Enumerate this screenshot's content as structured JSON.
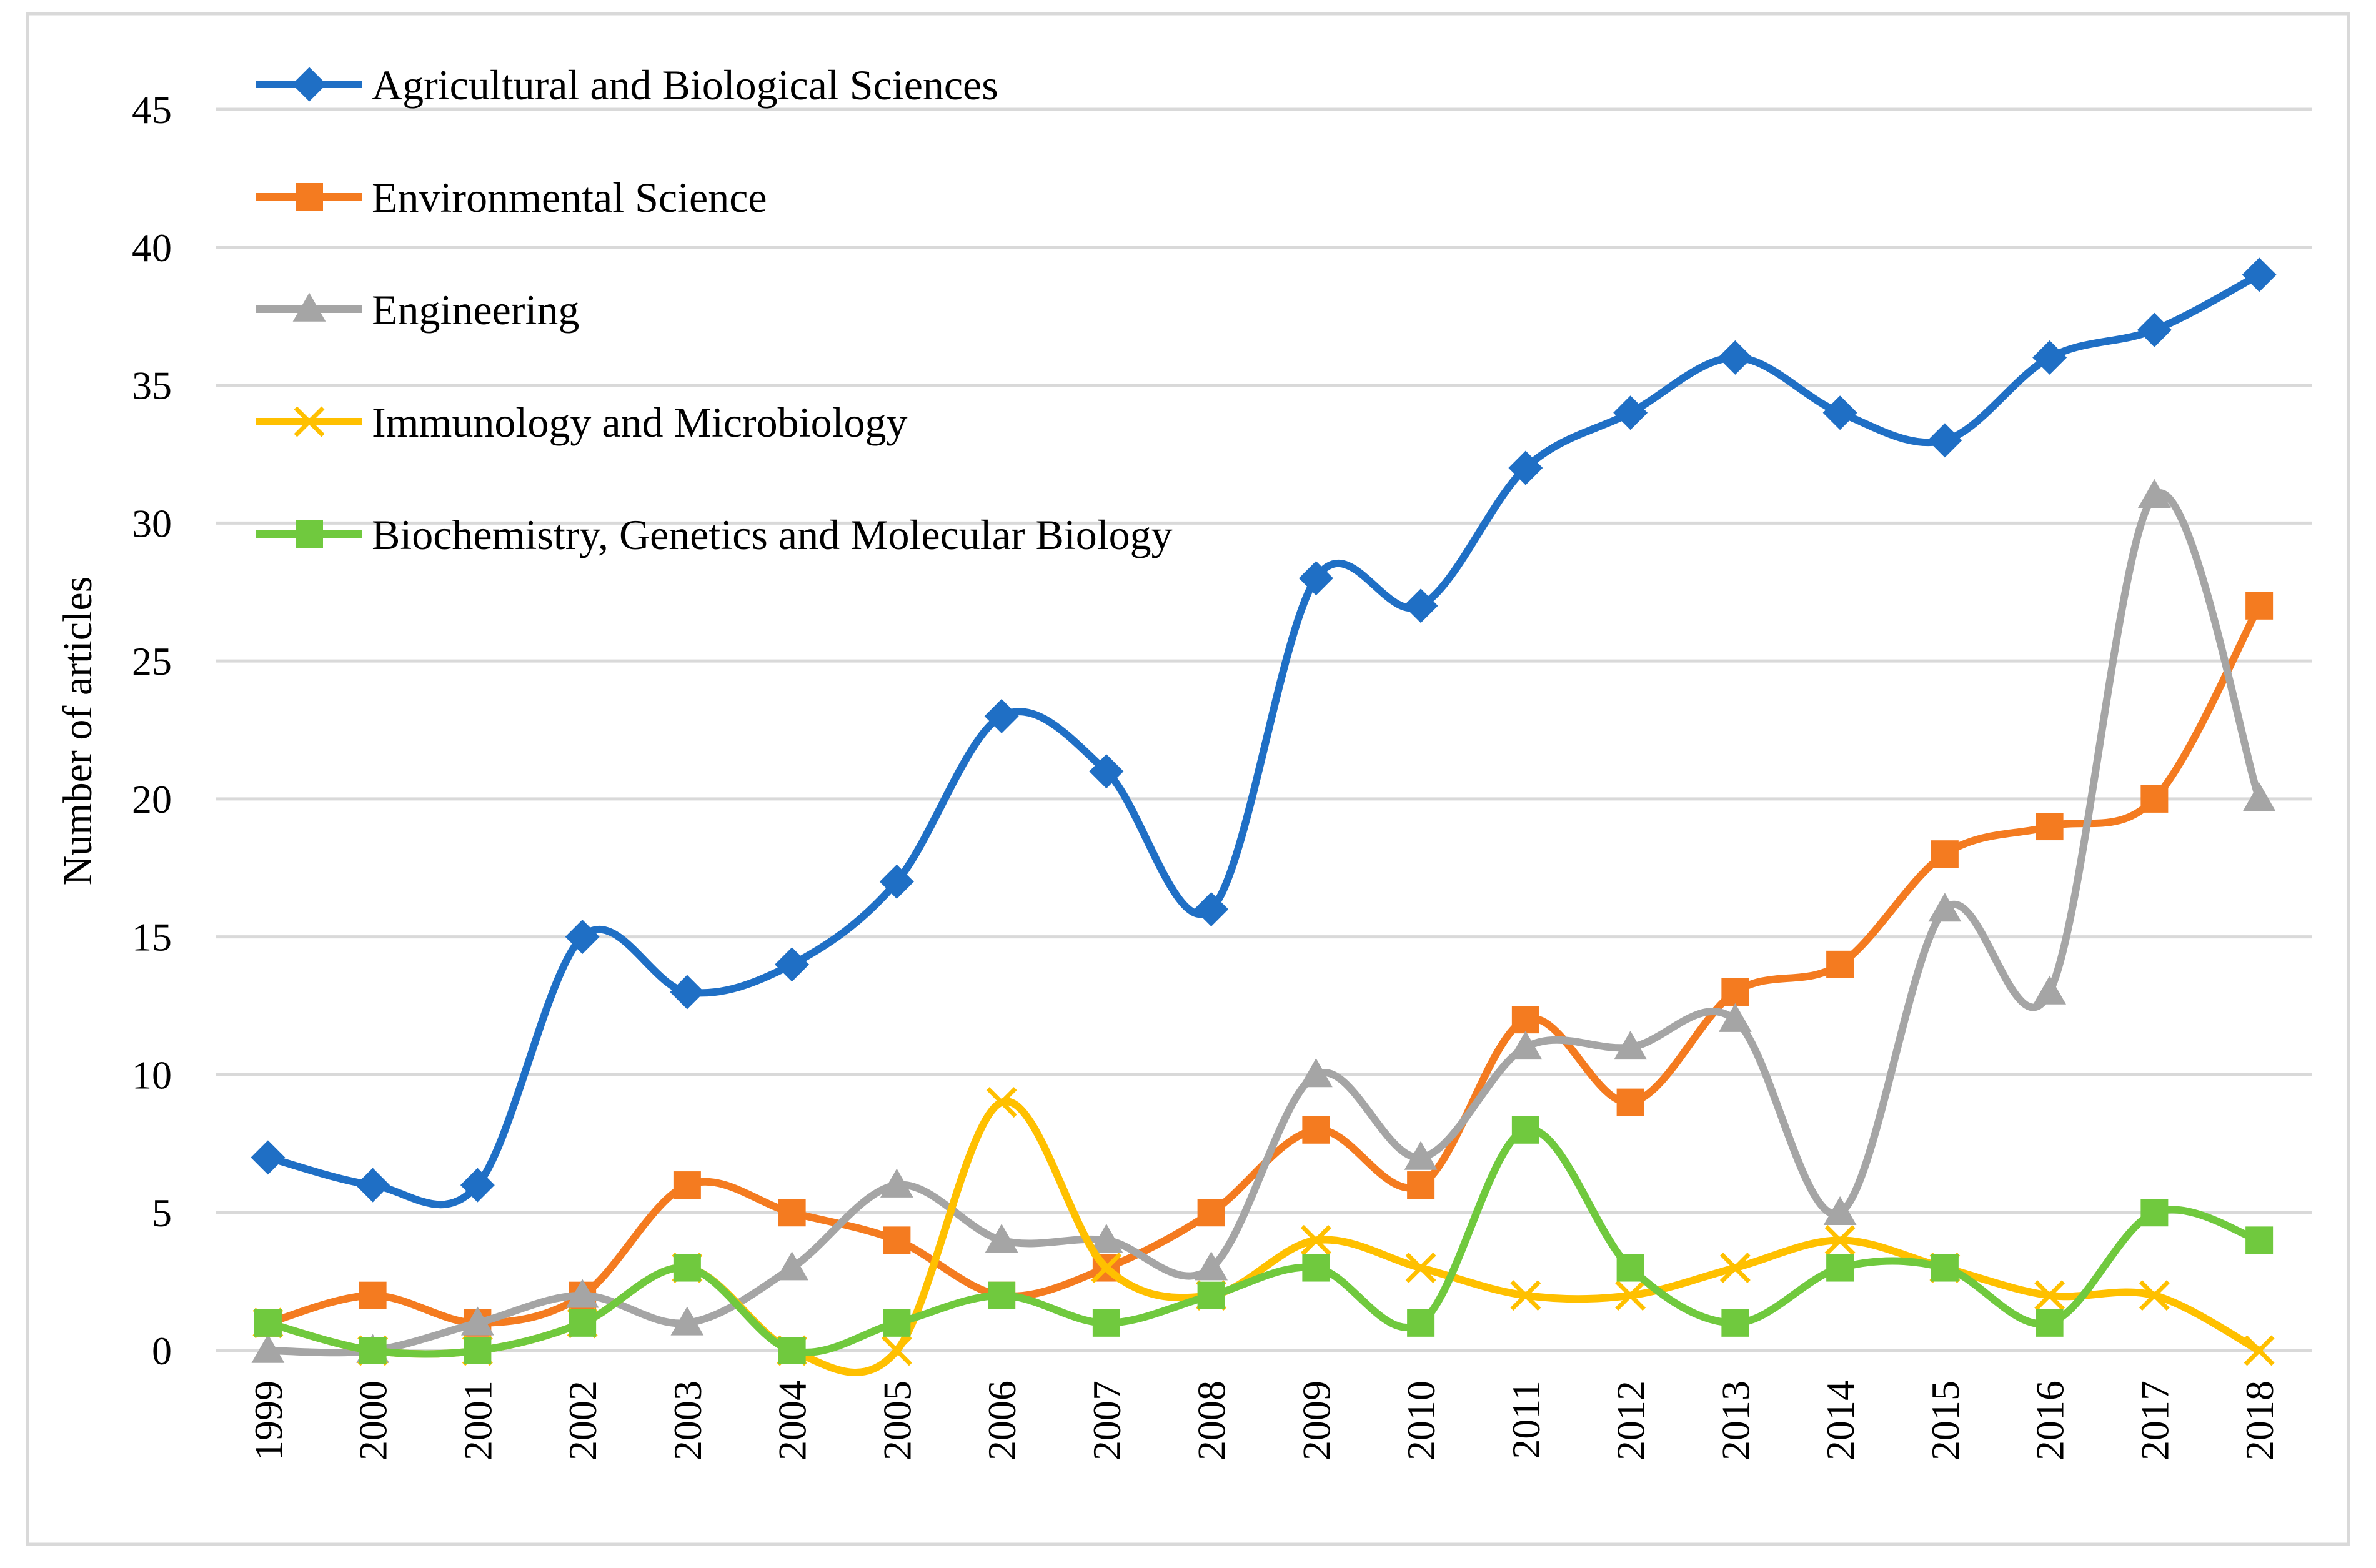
{
  "chart_data": {
    "type": "line",
    "title": "",
    "xlabel": "",
    "ylabel": "Number of articles",
    "ylim": [
      0,
      45
    ],
    "yticks": [
      0,
      5,
      10,
      15,
      20,
      25,
      30,
      35,
      40,
      45
    ],
    "grid": true,
    "smooth": true,
    "legend_position": "top-left",
    "categories": [
      "1999",
      "2000",
      "2001",
      "2002",
      "2003",
      "2004",
      "2005",
      "2006",
      "2007",
      "2008",
      "2009",
      "2010",
      "2011",
      "2012",
      "2013",
      "2014",
      "2015",
      "2016",
      "2017",
      "2018"
    ],
    "series": [
      {
        "name": "Agricultural and Biological Sciences",
        "color": "#1f6fc5",
        "marker": "diamond",
        "values": [
          7,
          6,
          6,
          15,
          13,
          14,
          17,
          23,
          21,
          16,
          28,
          27,
          32,
          34,
          36,
          34,
          33,
          36,
          37,
          39
        ]
      },
      {
        "name": "Environmental Science",
        "color": "#f47b20",
        "marker": "square",
        "values": [
          1,
          2,
          1,
          2,
          6,
          5,
          4,
          2,
          3,
          5,
          8,
          6,
          12,
          9,
          13,
          14,
          18,
          19,
          20,
          27
        ]
      },
      {
        "name": "Engineering",
        "color": "#a5a5a5",
        "marker": "triangle",
        "values": [
          0,
          0,
          1,
          2,
          1,
          3,
          6,
          4,
          4,
          3,
          10,
          7,
          11,
          11,
          12,
          5,
          16,
          13,
          31,
          20
        ]
      },
      {
        "name": "Immunology and Microbiology",
        "color": "#ffc000",
        "marker": "x",
        "values": [
          1,
          0,
          0,
          1,
          3,
          0,
          0,
          9,
          3,
          2,
          4,
          3,
          2,
          2,
          3,
          4,
          3,
          2,
          2,
          0
        ]
      },
      {
        "name": "Biochemistry, Genetics and Molecular Biology",
        "color": "#70c93e",
        "marker": "square",
        "values": [
          1,
          0,
          0,
          1,
          3,
          0,
          1,
          2,
          1,
          2,
          3,
          1,
          8,
          3,
          1,
          3,
          3,
          1,
          5,
          4
        ]
      }
    ]
  }
}
